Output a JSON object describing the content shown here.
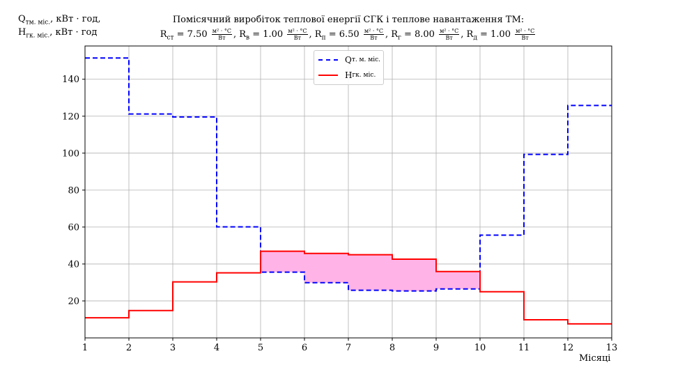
{
  "header": {
    "ylabel_line1": "Q",
    "ylabel_line1_sub": "тм. міс.",
    "ylabel_line1_unit": ", кВт · год,",
    "ylabel_line2": "H",
    "ylabel_line2_sub": "гк. міс.",
    "ylabel_line2_unit": ", кВт · год",
    "title": "Помісячний виробіток теплової енергії СГК і теплове навантаження ТМ:",
    "params": [
      {
        "sym": "R",
        "sub": "ст",
        "val": "7.50"
      },
      {
        "sym": "R",
        "sub": "в",
        "val": "1.00"
      },
      {
        "sym": "R",
        "sub": "п",
        "val": "6.50"
      },
      {
        "sym": "R",
        "sub": "г",
        "val": "8.00"
      },
      {
        "sym": "R",
        "sub": "д",
        "val": "1.00"
      }
    ],
    "unit_num": "м² · °С",
    "unit_den": "Вт"
  },
  "chart_data": {
    "type": "line",
    "step": "post",
    "title": "Помісячний виробіток теплової енергії СГК і теплове навантаження ТМ",
    "xlabel": "Місяці",
    "ylabel": "Qтм. міс., кВт · год, Hгк. міс., кВт · год",
    "xlim": [
      1,
      13
    ],
    "ylim": [
      0,
      158
    ],
    "xticks": [
      1,
      2,
      3,
      4,
      5,
      6,
      7,
      8,
      9,
      10,
      11,
      12,
      13
    ],
    "yticks": [
      20,
      40,
      60,
      80,
      100,
      120,
      140
    ],
    "grid": true,
    "legend_position": "top-center",
    "x": [
      1,
      2,
      3,
      4,
      5,
      6,
      7,
      8,
      9,
      10,
      11,
      12
    ],
    "series": [
      {
        "name": "Qт. м. міс.",
        "name_base": "Q",
        "name_sub": "т. м. міс.",
        "style": "dashed",
        "color": "#0000ff",
        "values": [
          151.5,
          121.2,
          119.6,
          60.1,
          35.6,
          29.9,
          25.8,
          25.4,
          26.5,
          55.6,
          99.3,
          125.8
        ]
      },
      {
        "name": "Hгк. міс.",
        "name_base": "H",
        "name_sub": "гк. міс.",
        "style": "solid",
        "color": "#ff0000",
        "values": [
          10.9,
          14.8,
          30.3,
          35.2,
          46.9,
          45.7,
          45.0,
          42.6,
          35.9,
          25.0,
          9.8,
          7.6
        ]
      }
    ],
    "fill_between": {
      "where": "H > Q",
      "color": "#ffb3e6"
    }
  }
}
